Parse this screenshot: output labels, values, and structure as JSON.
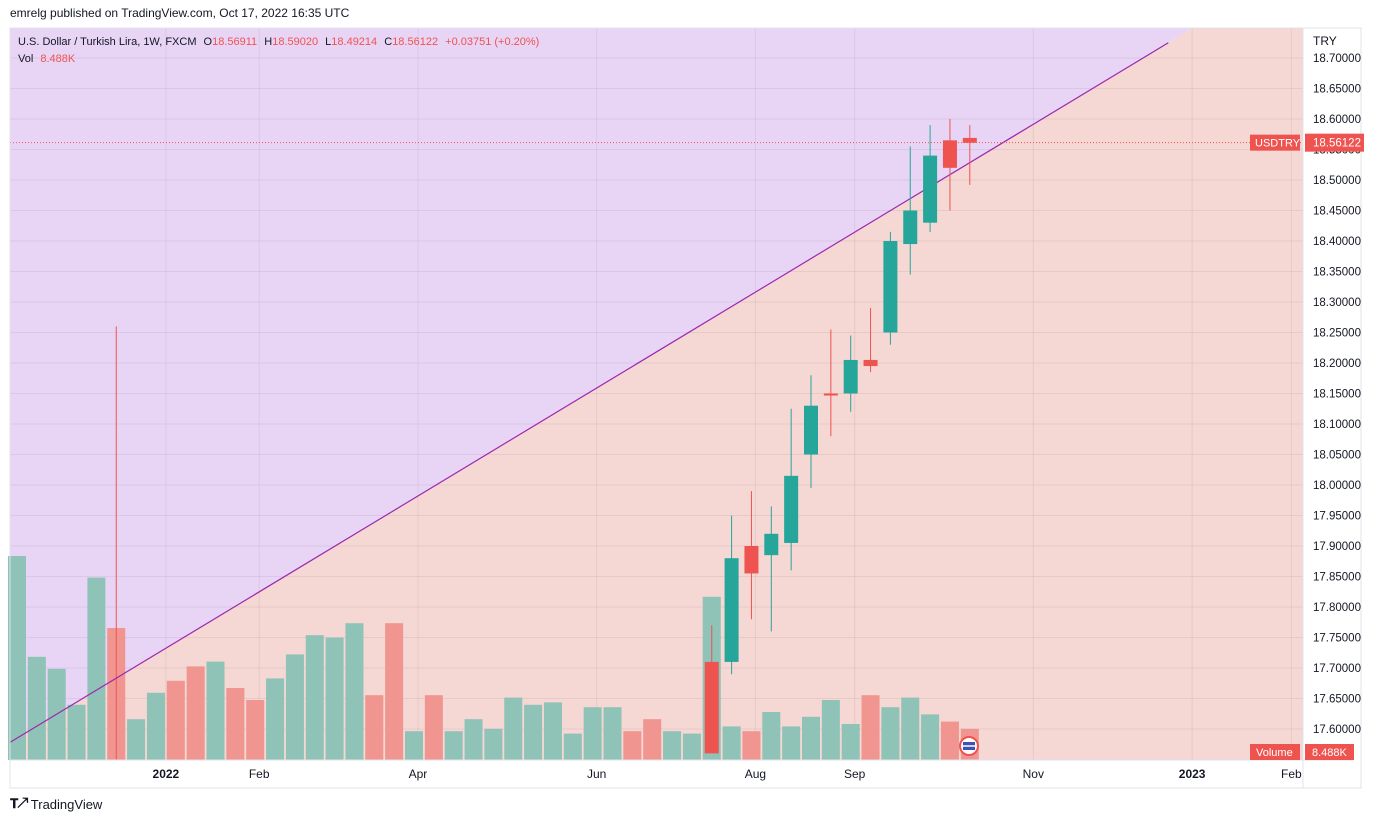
{
  "header": {
    "published": "emrelg published on TradingView.com, Oct 17, 2022 16:35 UTC"
  },
  "legend": {
    "symbol": "U.S. Dollar / Turkish Lira, 1W, FXCM",
    "o_key": "O",
    "o_val": "18.56911",
    "h_key": "H",
    "h_val": "18.59020",
    "l_key": "L",
    "l_val": "18.49214",
    "c_key": "C",
    "c_val": "18.56122",
    "change": "+0.03751 (+0.20%)",
    "vol_key": "Vol",
    "vol_val": "8.488K"
  },
  "footer": {
    "brand": "TradingView"
  },
  "colors": {
    "up": "#26a69a",
    "down": "#ef5350",
    "trendline": "#9c27b0",
    "zone_above": "#e8d5f5",
    "zone_below": "#f5d7d4",
    "vol_up": "#8fc3b7",
    "vol_down": "#f0958f"
  },
  "chart_data": {
    "type": "candlestick",
    "currency_label": "TRY",
    "symbol_tag": "USDTRY",
    "last_price": "18.56122",
    "volume_tag": "Volume",
    "volume_last": "8.488K",
    "ylim": [
      17.56,
      18.72
    ],
    "y_ticks": [
      "18.70000",
      "18.65000",
      "18.60000",
      "18.55000",
      "18.50000",
      "18.45000",
      "18.40000",
      "18.35000",
      "18.30000",
      "18.25000",
      "18.20000",
      "18.15000",
      "18.10000",
      "18.05000",
      "18.00000",
      "17.95000",
      "17.90000",
      "17.85000",
      "17.80000",
      "17.75000",
      "17.70000",
      "17.65000",
      "17.60000"
    ],
    "x_labels": [
      {
        "label": "2022",
        "bar": 7.5,
        "bold": true
      },
      {
        "label": "Feb",
        "bar": 12.2
      },
      {
        "label": "Apr",
        "bar": 20.2
      },
      {
        "label": "Jun",
        "bar": 29.2
      },
      {
        "label": "Aug",
        "bar": 37.2
      },
      {
        "label": "Sep",
        "bar": 42.2
      },
      {
        "label": "Nov",
        "bar": 51.2
      },
      {
        "label": "2023",
        "bar": 59.2,
        "bold": true
      },
      {
        "label": "Feb",
        "bar": 64.2
      }
    ],
    "candles": [
      {
        "bar": 35,
        "o": 17.71,
        "h": 17.77,
        "l": 17.56,
        "c": 17.56
      },
      {
        "bar": 36,
        "o": 17.71,
        "h": 17.95,
        "l": 17.69,
        "c": 17.88
      },
      {
        "bar": 37,
        "o": 17.9,
        "h": 17.99,
        "l": 17.78,
        "c": 17.855
      },
      {
        "bar": 38,
        "o": 17.885,
        "h": 17.965,
        "l": 17.76,
        "c": 17.92
      },
      {
        "bar": 39,
        "o": 17.905,
        "h": 18.125,
        "l": 17.86,
        "c": 18.015
      },
      {
        "bar": 40,
        "o": 18.05,
        "h": 18.18,
        "l": 17.995,
        "c": 18.13
      },
      {
        "bar": 41,
        "o": 18.15,
        "h": 18.255,
        "l": 18.08,
        "c": 18.148
      },
      {
        "bar": 42,
        "o": 18.15,
        "h": 18.245,
        "l": 18.12,
        "c": 18.205
      },
      {
        "bar": 43,
        "o": 18.205,
        "h": 18.29,
        "l": 18.185,
        "c": 18.195
      },
      {
        "bar": 44,
        "o": 18.25,
        "h": 18.415,
        "l": 18.23,
        "c": 18.4
      },
      {
        "bar": 45,
        "o": 18.395,
        "h": 18.555,
        "l": 18.345,
        "c": 18.45
      },
      {
        "bar": 46,
        "o": 18.43,
        "h": 18.59,
        "l": 18.415,
        "c": 18.54
      },
      {
        "bar": 47,
        "o": 18.565,
        "h": 18.6,
        "l": 18.45,
        "c": 18.52
      },
      {
        "bar": 48,
        "o": 18.569,
        "h": 18.59,
        "l": 18.492,
        "c": 18.561
      }
    ],
    "spike": {
      "bar": 5,
      "high": 18.26
    },
    "volume": [
      {
        "bar": 0,
        "v": 0.85,
        "dir": "up"
      },
      {
        "bar": 1,
        "v": 0.43,
        "dir": "up"
      },
      {
        "bar": 2,
        "v": 0.38,
        "dir": "up"
      },
      {
        "bar": 3,
        "v": 0.23,
        "dir": "up"
      },
      {
        "bar": 4,
        "v": 0.76,
        "dir": "up"
      },
      {
        "bar": 5,
        "v": 0.55,
        "dir": "down"
      },
      {
        "bar": 6,
        "v": 0.17,
        "dir": "up"
      },
      {
        "bar": 7,
        "v": 0.28,
        "dir": "up"
      },
      {
        "bar": 8,
        "v": 0.33,
        "dir": "down"
      },
      {
        "bar": 9,
        "v": 0.39,
        "dir": "down"
      },
      {
        "bar": 10,
        "v": 0.41,
        "dir": "up"
      },
      {
        "bar": 11,
        "v": 0.3,
        "dir": "down"
      },
      {
        "bar": 12,
        "v": 0.25,
        "dir": "down"
      },
      {
        "bar": 13,
        "v": 0.34,
        "dir": "up"
      },
      {
        "bar": 14,
        "v": 0.44,
        "dir": "up"
      },
      {
        "bar": 15,
        "v": 0.52,
        "dir": "up"
      },
      {
        "bar": 16,
        "v": 0.51,
        "dir": "up"
      },
      {
        "bar": 17,
        "v": 0.57,
        "dir": "up"
      },
      {
        "bar": 18,
        "v": 0.27,
        "dir": "down"
      },
      {
        "bar": 19,
        "v": 0.57,
        "dir": "down"
      },
      {
        "bar": 20,
        "v": 0.12,
        "dir": "up"
      },
      {
        "bar": 21,
        "v": 0.27,
        "dir": "down"
      },
      {
        "bar": 22,
        "v": 0.12,
        "dir": "up"
      },
      {
        "bar": 23,
        "v": 0.17,
        "dir": "up"
      },
      {
        "bar": 24,
        "v": 0.13,
        "dir": "up"
      },
      {
        "bar": 25,
        "v": 0.26,
        "dir": "up"
      },
      {
        "bar": 26,
        "v": 0.23,
        "dir": "up"
      },
      {
        "bar": 27,
        "v": 0.24,
        "dir": "up"
      },
      {
        "bar": 28,
        "v": 0.11,
        "dir": "up"
      },
      {
        "bar": 29,
        "v": 0.22,
        "dir": "up"
      },
      {
        "bar": 30,
        "v": 0.22,
        "dir": "up"
      },
      {
        "bar": 31,
        "v": 0.12,
        "dir": "down"
      },
      {
        "bar": 32,
        "v": 0.17,
        "dir": "down"
      },
      {
        "bar": 33,
        "v": 0.12,
        "dir": "up"
      },
      {
        "bar": 34,
        "v": 0.11,
        "dir": "up"
      },
      {
        "bar": 35,
        "v": 0.68,
        "dir": "up"
      },
      {
        "bar": 36,
        "v": 0.14,
        "dir": "up"
      },
      {
        "bar": 37,
        "v": 0.12,
        "dir": "down"
      },
      {
        "bar": 38,
        "v": 0.2,
        "dir": "up"
      },
      {
        "bar": 39,
        "v": 0.14,
        "dir": "up"
      },
      {
        "bar": 40,
        "v": 0.18,
        "dir": "up"
      },
      {
        "bar": 41,
        "v": 0.25,
        "dir": "up"
      },
      {
        "bar": 42,
        "v": 0.15,
        "dir": "up"
      },
      {
        "bar": 43,
        "v": 0.27,
        "dir": "down"
      },
      {
        "bar": 44,
        "v": 0.22,
        "dir": "up"
      },
      {
        "bar": 45,
        "v": 0.26,
        "dir": "up"
      },
      {
        "bar": 46,
        "v": 0.19,
        "dir": "up"
      },
      {
        "bar": 47,
        "v": 0.16,
        "dir": "down"
      },
      {
        "bar": 48,
        "v": 0.13,
        "dir": "down"
      }
    ],
    "trendline": {
      "from": {
        "bar": 0,
        "price": 17.585
      },
      "to": {
        "bar": 58,
        "price": 18.725
      }
    }
  }
}
